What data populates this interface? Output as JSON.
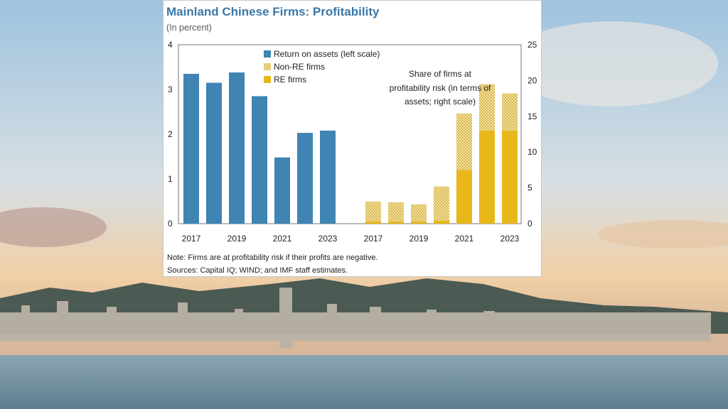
{
  "title": "Mainland Chinese Firms: Profitability",
  "subtitle": "(In percent)",
  "note": "Note: Firms are at profitability risk if their profits are negative.",
  "sources": "Sources: Capital IQ; WIND; and IMF staff estimates.",
  "colors": {
    "roa": "#3f84b3",
    "re": "#e8b71a",
    "nonre_bg": "#f4e2a6",
    "nonre_dot": "#d9b84e",
    "title": "#3a78a8"
  },
  "chart_data": [
    {
      "type": "bar",
      "axis": "left",
      "legend_label": "Return on assets (left scale)",
      "categories": [
        "2017",
        "2018",
        "2019",
        "2020",
        "2021",
        "2022",
        "2023"
      ],
      "tick_labels": [
        "2017",
        "2019",
        "2021",
        "2023"
      ],
      "values": [
        3.35,
        3.15,
        3.38,
        2.85,
        1.48,
        2.03,
        2.08
      ],
      "ylim": [
        0,
        4
      ],
      "yticks": [
        "0",
        "1",
        "2",
        "3",
        "4"
      ]
    },
    {
      "type": "bar",
      "stacked": true,
      "axis": "right",
      "annotation": [
        "Share of firms at",
        "profitability risk (in terms of",
        "assets; right scale)"
      ],
      "categories": [
        "2017",
        "2018",
        "2019",
        "2020",
        "2021",
        "2022",
        "2023"
      ],
      "tick_labels": [
        "2017",
        "2019",
        "2021",
        "2023"
      ],
      "series": [
        {
          "name": "RE firms",
          "values": [
            0.3,
            0.3,
            0.3,
            0.4,
            7.5,
            13.0,
            13.0
          ]
        },
        {
          "name": "Non-RE firms",
          "values": [
            2.8,
            2.7,
            2.4,
            4.8,
            7.9,
            6.5,
            5.2
          ]
        }
      ],
      "ylim": [
        0,
        25
      ],
      "yticks": [
        "0",
        "5",
        "10",
        "15",
        "20",
        "25"
      ]
    }
  ]
}
